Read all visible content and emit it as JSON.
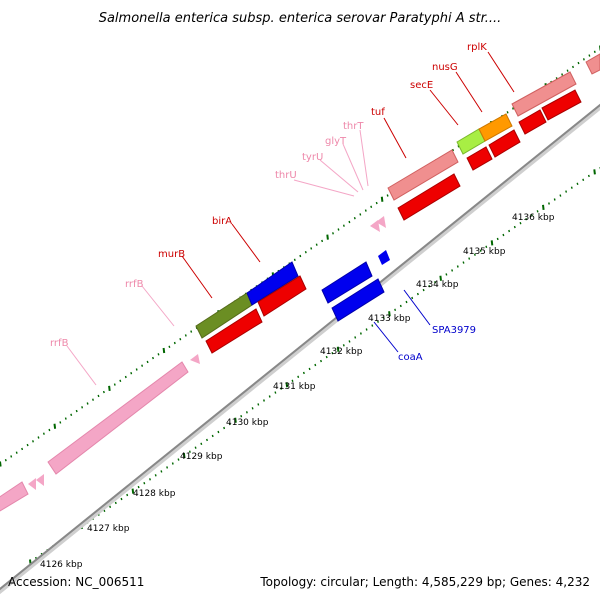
{
  "title": "Salmonella enterica subsp. enterica serovar Paratyphi A str....",
  "footer": {
    "accession": "Accession: NC_006511",
    "summary": "Topology: circular; Length: 4,585,229 bp; Genes: 4,232"
  },
  "colors": {
    "rna_pink": "#f4a6c6",
    "cds_red": "#ee0000",
    "cds_salmon": "#f08f8f",
    "cds_blue": "#0000ee",
    "cds_olive": "#6b8e23",
    "cds_orange": "#ff9900",
    "cds_lime": "#a8ee44",
    "label_red": "#cc0000",
    "label_pink": "#ee88aa",
    "label_blue": "#0000cc",
    "tick_green": "#006600",
    "axis_gray": "#999999"
  },
  "scale_labels": [
    "4126 kbp",
    "4127 kbp",
    "4128 kbp",
    "4129 kbp",
    "4130 kbp",
    "4131 kbp",
    "4132 kbp",
    "4133 kbp",
    "4134 kbp",
    "4135 kbp",
    "4136 kbp"
  ],
  "gene_labels": [
    {
      "text": "rrfB",
      "color": "pink"
    },
    {
      "text": "rrfB",
      "color": "pink"
    },
    {
      "text": "murB",
      "color": "red"
    },
    {
      "text": "birA",
      "color": "red"
    },
    {
      "text": "thrU",
      "color": "pink"
    },
    {
      "text": "tyrU",
      "color": "pink"
    },
    {
      "text": "glyT",
      "color": "pink"
    },
    {
      "text": "thrT",
      "color": "pink"
    },
    {
      "text": "tuf",
      "color": "red"
    },
    {
      "text": "secE",
      "color": "red"
    },
    {
      "text": "nusG",
      "color": "red"
    },
    {
      "text": "rplK",
      "color": "red"
    },
    {
      "text": "SPA3979",
      "color": "blue"
    },
    {
      "text": "coaA",
      "color": "blue"
    }
  ]
}
